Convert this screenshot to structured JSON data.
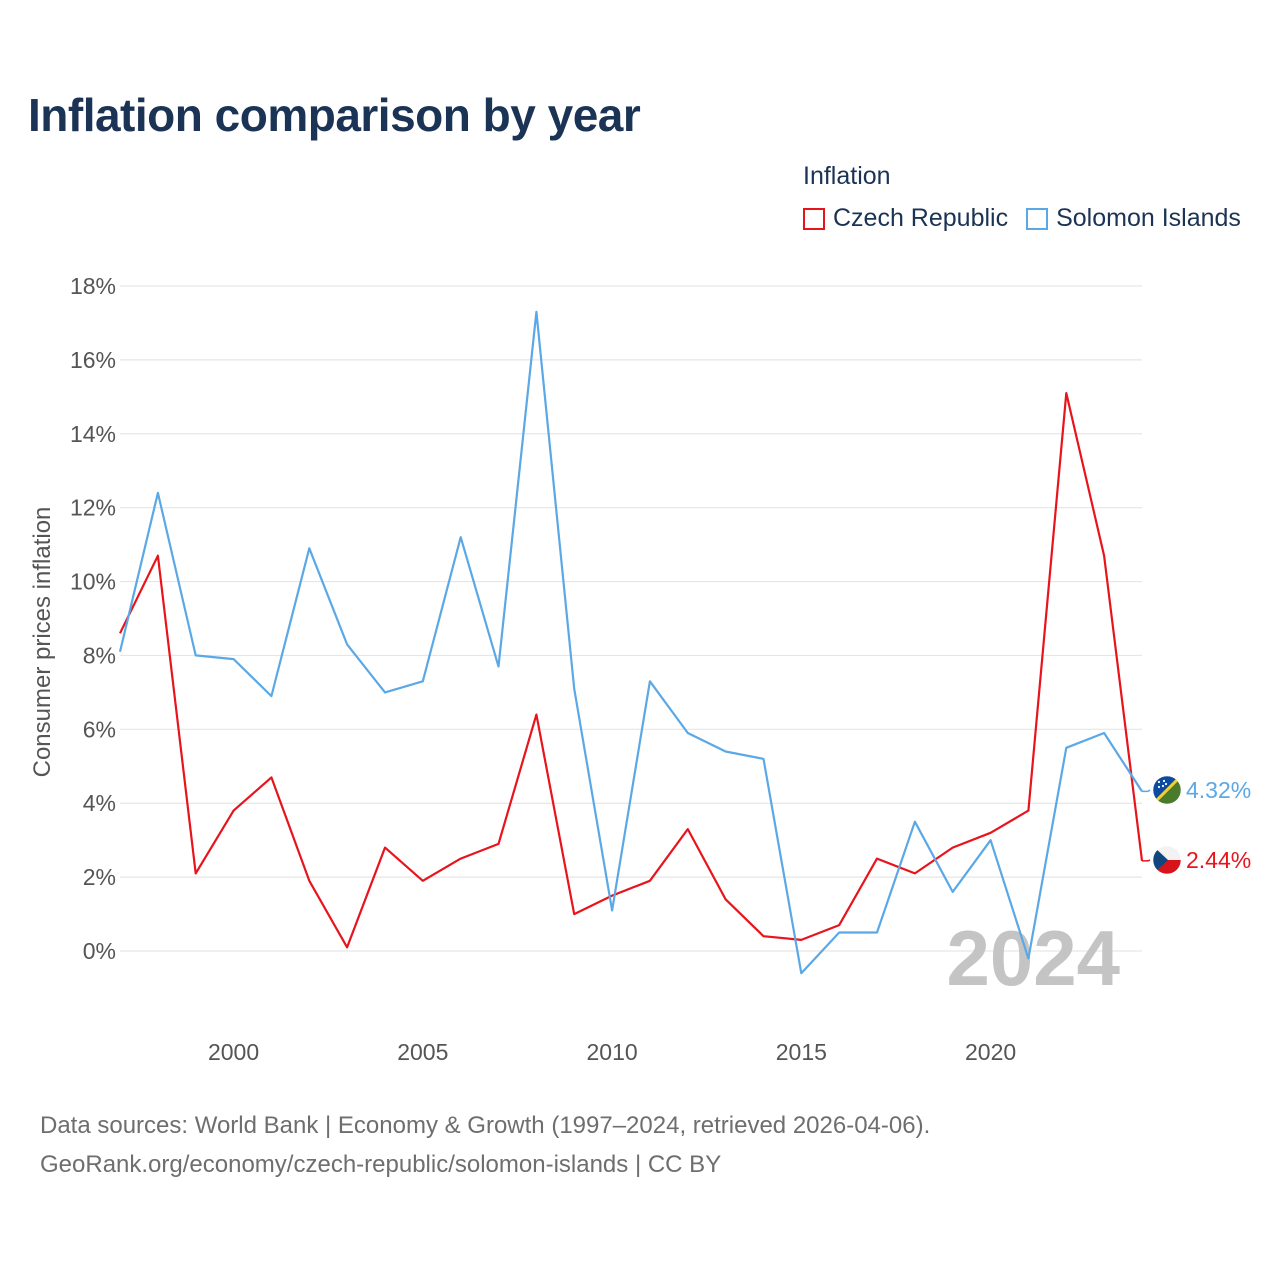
{
  "title": "Inflation comparison by year",
  "legend": {
    "title": "Inflation",
    "items": [
      {
        "label": "Czech Republic",
        "color": "#e8141c"
      },
      {
        "label": "Solomon Islands",
        "color": "#5ba8e6"
      }
    ]
  },
  "chart_data": {
    "type": "line",
    "ylabel": "Consumer prices inflation",
    "xlabel": "",
    "xlim": [
      1997,
      2024
    ],
    "ylim": [
      -2.2,
      18
    ],
    "y_ticks": [
      0,
      2,
      4,
      6,
      8,
      10,
      12,
      14,
      16,
      18
    ],
    "y_tick_labels": [
      "0%",
      "2%",
      "4%",
      "6%",
      "8%",
      "10%",
      "12%",
      "14%",
      "16%",
      "18%"
    ],
    "x_ticks": [
      2000,
      2005,
      2010,
      2015,
      2020
    ],
    "x_tick_labels": [
      "2000",
      "2005",
      "2010",
      "2015",
      "2020"
    ],
    "x": [
      1997,
      1998,
      1999,
      2000,
      2001,
      2002,
      2003,
      2004,
      2005,
      2006,
      2007,
      2008,
      2009,
      2010,
      2011,
      2012,
      2013,
      2014,
      2015,
      2016,
      2017,
      2018,
      2019,
      2020,
      2021,
      2022,
      2023,
      2024
    ],
    "series": [
      {
        "name": "Czech Republic",
        "color": "#e8141c",
        "values": [
          8.6,
          10.7,
          2.1,
          3.8,
          4.7,
          1.9,
          0.1,
          2.8,
          1.9,
          2.5,
          2.9,
          6.4,
          1.0,
          1.5,
          1.9,
          3.3,
          1.4,
          0.4,
          0.3,
          0.7,
          2.5,
          2.1,
          2.8,
          3.2,
          3.8,
          15.1,
          10.7,
          2.44
        ],
        "end_label": "2.44%",
        "flag": "czech-flag-icon"
      },
      {
        "name": "Solomon Islands",
        "color": "#5ba8e6",
        "values": [
          8.1,
          12.4,
          8.0,
          7.9,
          6.9,
          10.9,
          8.3,
          7.0,
          7.3,
          11.2,
          7.7,
          17.3,
          7.1,
          1.1,
          7.3,
          5.9,
          5.4,
          5.2,
          -0.6,
          0.5,
          0.5,
          3.5,
          1.6,
          3.0,
          -0.2,
          5.5,
          5.9,
          4.32
        ],
        "end_label": "4.32%",
        "flag": "solomon-islands-flag-icon"
      }
    ],
    "watermark_year": "2024"
  },
  "source": {
    "line1": "Data sources: World Bank | Economy & Growth (1997–2024, retrieved 2026-04-06).",
    "line2": "GeoRank.org/economy/czech-republic/solomon-islands | CC BY"
  }
}
